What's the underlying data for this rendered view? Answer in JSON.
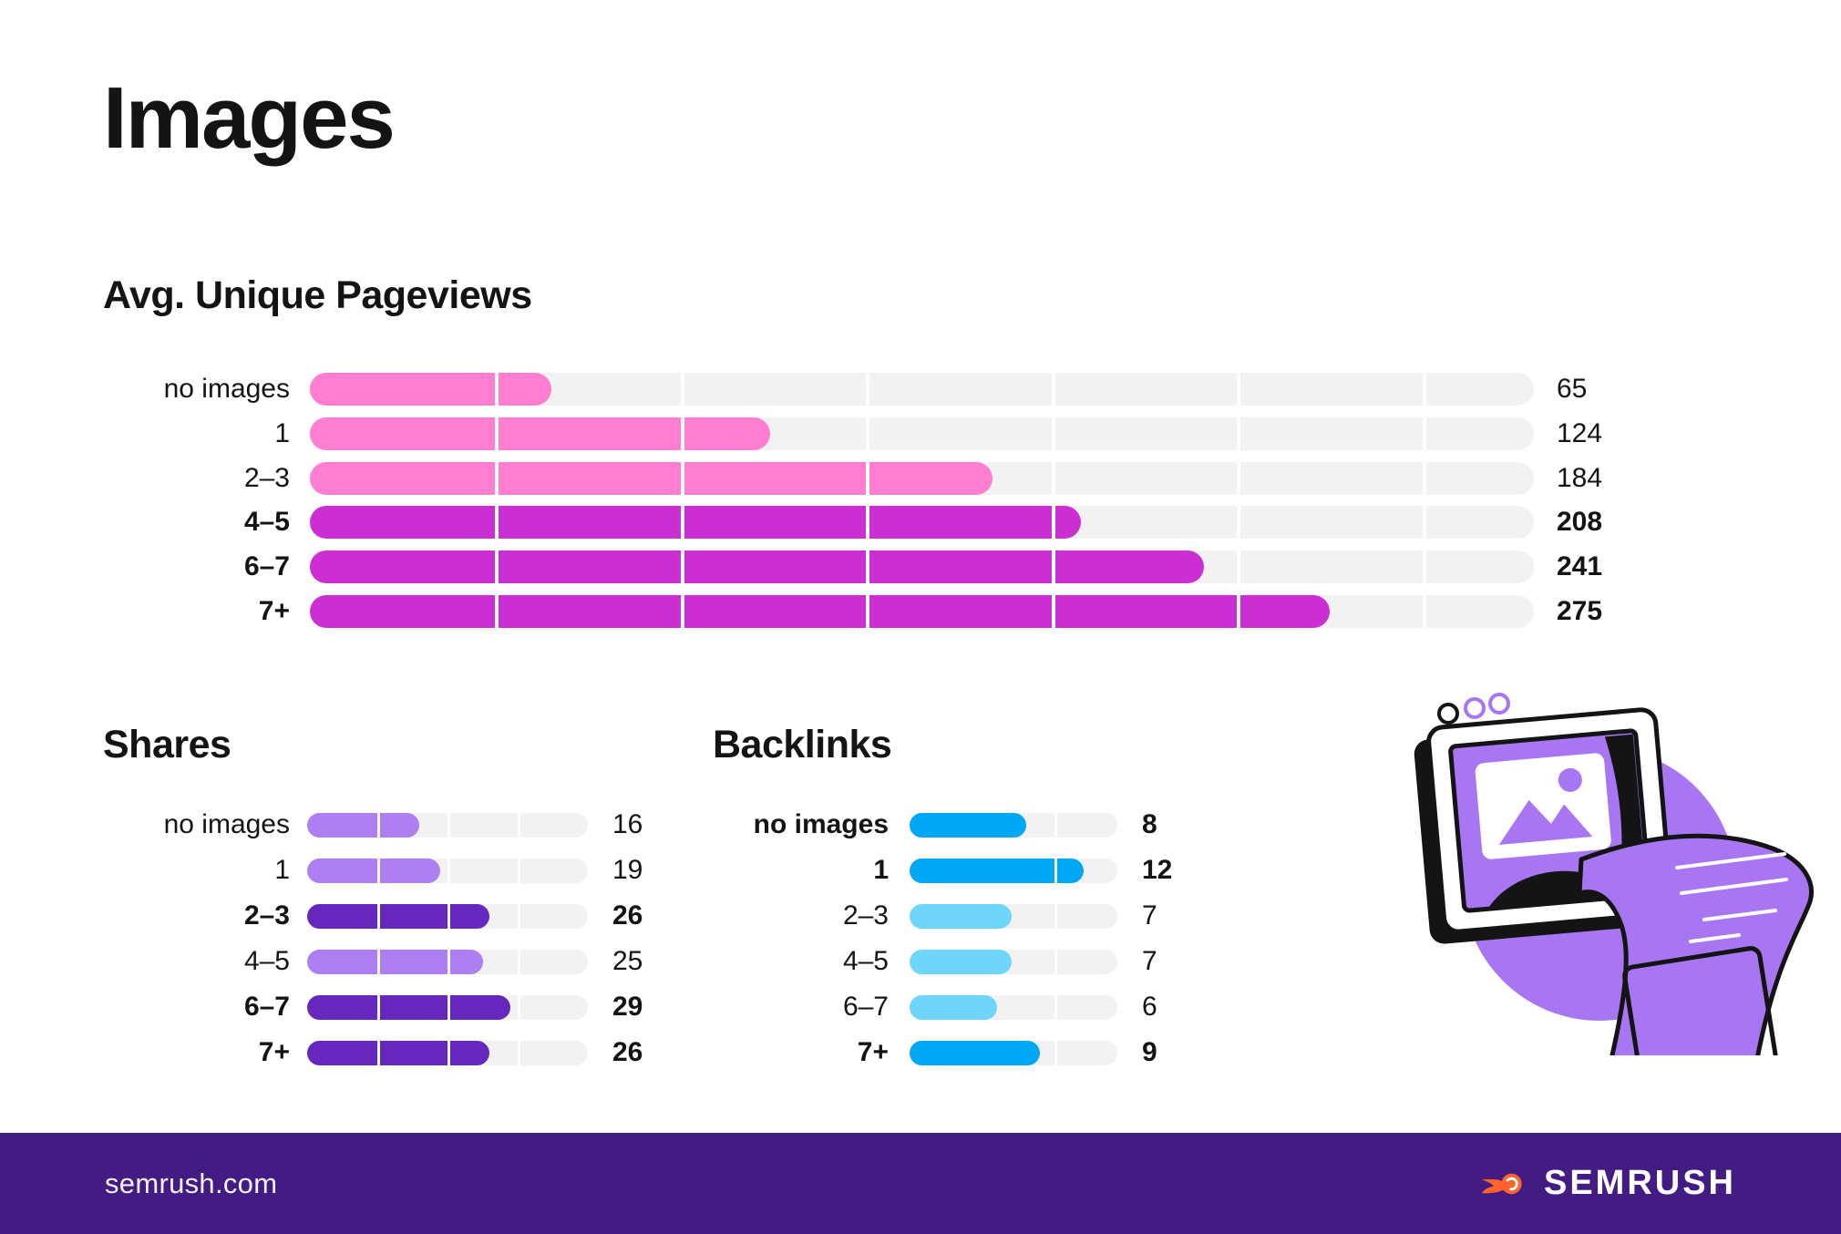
{
  "page": {
    "title": "Images"
  },
  "footer": {
    "site": "semrush.com",
    "brand": "SEMRUSH"
  },
  "colors": {
    "pink": "#ff7ed2",
    "magenta": "#cb2ed3",
    "purple_light": "#ae7ff2",
    "purple_dark": "#6527be",
    "blue_bright": "#00a7f5",
    "blue_light": "#70d5fb",
    "track_gray": "#f2f2f2",
    "footer_bg": "#421b83",
    "illustration_purple": "#a876f2",
    "brand_orange": "#ff642d",
    "text": "#141414"
  },
  "icons": {
    "illustration": "monitor-printing-image-illustration",
    "brand_icon": "semrush-flame-ball-icon"
  },
  "chart_data": [
    {
      "type": "bar",
      "orientation": "horizontal",
      "title": "Avg. Unique Pageviews",
      "categories": [
        "no images",
        "1",
        "2–3",
        "4–5",
        "6–7",
        "7+"
      ],
      "values": [
        65,
        124,
        184,
        208,
        241,
        275
      ],
      "emphasis": [
        false,
        false,
        false,
        true,
        true,
        true
      ],
      "bar_colors": [
        "#ff7ed2",
        "#ff7ed2",
        "#ff7ed2",
        "#cb2ed3",
        "#cb2ed3",
        "#cb2ed3"
      ],
      "xlim": [
        0,
        330
      ],
      "gridline_every": 50,
      "grid": true,
      "legend": "none",
      "value_labels": "right"
    },
    {
      "type": "bar",
      "orientation": "horizontal",
      "title": "Shares",
      "categories": [
        "no images",
        "1",
        "2–3",
        "4–5",
        "6–7",
        "7+"
      ],
      "values": [
        16,
        19,
        26,
        25,
        29,
        26
      ],
      "emphasis": [
        false,
        false,
        true,
        false,
        true,
        true
      ],
      "bar_colors": [
        "#ae7ff2",
        "#ae7ff2",
        "#6527be",
        "#ae7ff2",
        "#6527be",
        "#6527be"
      ],
      "xlim": [
        0,
        40
      ],
      "gridline_every": 10,
      "grid": true,
      "legend": "none",
      "value_labels": "right"
    },
    {
      "type": "bar",
      "orientation": "horizontal",
      "title": "Backlinks",
      "categories": [
        "no images",
        "1",
        "2–3",
        "4–5",
        "6–7",
        "7+"
      ],
      "values": [
        8,
        12,
        7,
        7,
        6,
        9
      ],
      "emphasis": [
        true,
        true,
        false,
        false,
        false,
        true
      ],
      "bar_colors": [
        "#00a7f5",
        "#00a7f5",
        "#70d5fb",
        "#70d5fb",
        "#70d5fb",
        "#00a7f5"
      ],
      "xlim": [
        0,
        14.3
      ],
      "gridline_every": 10,
      "grid": true,
      "legend": "none",
      "value_labels": "right"
    }
  ]
}
